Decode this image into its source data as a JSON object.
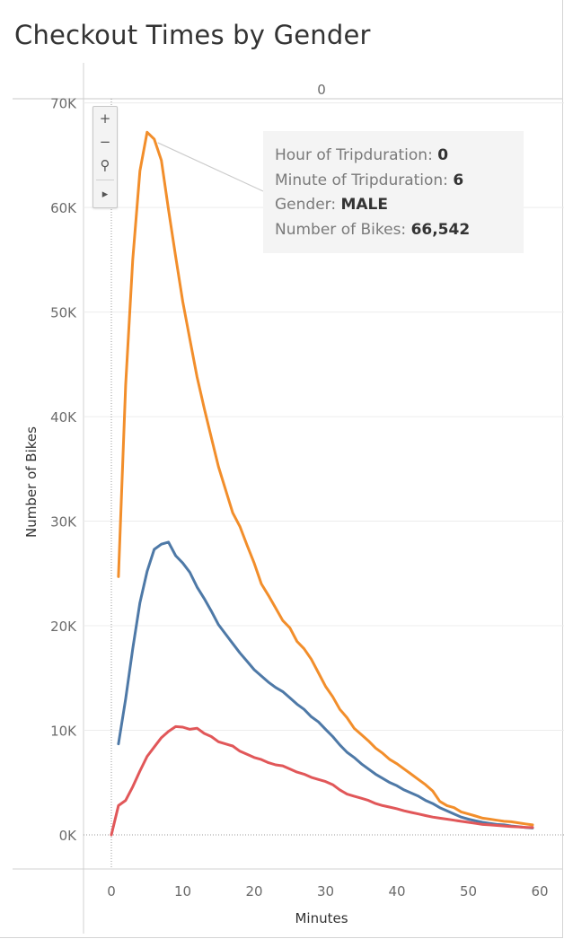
{
  "title": "Checkout Times by Gender",
  "column_header": "0",
  "zoom_tools": [
    {
      "name": "zoom-in",
      "glyph": "+"
    },
    {
      "name": "zoom-out",
      "glyph": "−"
    },
    {
      "name": "pin",
      "glyph": "⚲"
    },
    {
      "name": "expand",
      "glyph": "▸"
    }
  ],
  "tooltip": {
    "rows": [
      {
        "label": "Hour of Tripduration:",
        "value": "0"
      },
      {
        "label": "Minute of Tripduration:",
        "value": "6"
      },
      {
        "label": "Gender:",
        "value": "MALE"
      },
      {
        "label": "Number of Bikes:",
        "value": "66,542"
      }
    ]
  },
  "chart_data": {
    "type": "line",
    "title": "Checkout Times by Gender",
    "xlabel": "Minutes",
    "ylabel": "Number of Bikes",
    "xlim": [
      -4,
      61
    ],
    "ylim": [
      -3000,
      70000
    ],
    "x_ticks": [
      0,
      10,
      20,
      30,
      40,
      50,
      60
    ],
    "x_tick_labels": [
      "0",
      "10",
      "20",
      "30",
      "40",
      "50",
      "60"
    ],
    "y_ticks": [
      0,
      10000,
      20000,
      30000,
      40000,
      50000,
      60000,
      70000
    ],
    "y_tick_labels": [
      "0K",
      "10K",
      "20K",
      "30K",
      "40K",
      "50K",
      "60K",
      "70K"
    ],
    "grid": true,
    "colors": {
      "male": "#f28e2b",
      "female": "#4e79a7",
      "unknown": "#e15759",
      "grid": "#ececec",
      "zero_line": "#999999"
    },
    "series": [
      {
        "key": "male",
        "x": [
          1,
          2,
          3,
          4,
          5,
          6,
          7,
          8,
          9,
          10,
          11,
          12,
          13,
          14,
          15,
          16,
          17,
          18,
          19,
          20,
          21,
          22,
          23,
          24,
          25,
          26,
          27,
          28,
          29,
          30,
          31,
          32,
          33,
          34,
          35,
          36,
          37,
          38,
          39,
          40,
          41,
          42,
          43,
          44,
          45,
          46,
          47,
          48,
          49,
          50,
          51,
          52,
          53,
          54,
          55,
          56,
          57,
          58,
          59
        ],
        "values": [
          24700,
          43000,
          55000,
          63500,
          67200,
          66542,
          64500,
          59800,
          55300,
          51000,
          47400,
          43800,
          40800,
          38000,
          35200,
          33000,
          30800,
          29500,
          27700,
          26000,
          24000,
          22900,
          21700,
          20500,
          19800,
          18500,
          17800,
          16800,
          15500,
          14200,
          13200,
          12000,
          11200,
          10200,
          9600,
          9000,
          8300,
          7800,
          7200,
          6800,
          6300,
          5800,
          5300,
          4800,
          4200,
          3200,
          2800,
          2600,
          2200,
          2000,
          1800,
          1600,
          1500,
          1400,
          1300,
          1250,
          1150,
          1050,
          950
        ]
      },
      {
        "key": "female",
        "x": [
          1,
          2,
          3,
          4,
          5,
          6,
          7,
          8,
          9,
          10,
          11,
          12,
          13,
          14,
          15,
          16,
          17,
          18,
          19,
          20,
          21,
          22,
          23,
          24,
          25,
          26,
          27,
          28,
          29,
          30,
          31,
          32,
          33,
          34,
          35,
          36,
          37,
          38,
          39,
          40,
          41,
          42,
          43,
          44,
          45,
          46,
          47,
          48,
          49,
          50,
          51,
          52,
          53,
          54,
          55,
          56,
          57,
          58,
          59
        ],
        "values": [
          8700,
          13000,
          17800,
          22200,
          25200,
          27300,
          27800,
          28000,
          26700,
          26000,
          25100,
          23700,
          22600,
          21400,
          20100,
          19200,
          18300,
          17400,
          16600,
          15800,
          15200,
          14600,
          14100,
          13700,
          13100,
          12500,
          12000,
          11300,
          10800,
          10100,
          9400,
          8600,
          7900,
          7400,
          6800,
          6300,
          5800,
          5400,
          5000,
          4700,
          4300,
          4000,
          3700,
          3300,
          3000,
          2600,
          2300,
          2000,
          1700,
          1500,
          1350,
          1200,
          1100,
          1000,
          950,
          850,
          780,
          700,
          650
        ]
      },
      {
        "key": "unknown",
        "x": [
          0,
          1,
          2,
          3,
          4,
          5,
          6,
          7,
          8,
          9,
          10,
          11,
          12,
          13,
          14,
          15,
          16,
          17,
          18,
          19,
          20,
          21,
          22,
          23,
          24,
          25,
          26,
          27,
          28,
          29,
          30,
          31,
          32,
          33,
          34,
          35,
          36,
          37,
          38,
          39,
          40,
          41,
          42,
          43,
          44,
          45,
          46,
          47,
          48,
          49,
          50,
          51,
          52,
          53,
          54,
          55,
          56,
          57,
          58,
          59
        ],
        "values": [
          0,
          2800,
          3300,
          4600,
          6100,
          7500,
          8400,
          9300,
          9900,
          10350,
          10300,
          10100,
          10200,
          9700,
          9400,
          8900,
          8700,
          8500,
          8000,
          7700,
          7400,
          7200,
          6900,
          6700,
          6600,
          6300,
          6000,
          5800,
          5500,
          5300,
          5100,
          4800,
          4300,
          3900,
          3700,
          3500,
          3300,
          3000,
          2800,
          2650,
          2500,
          2300,
          2150,
          2000,
          1850,
          1700,
          1600,
          1500,
          1400,
          1300,
          1200,
          1100,
          1000,
          950,
          900,
          850,
          800,
          760,
          720,
          700
        ]
      }
    ],
    "highlight": {
      "series": "male",
      "x": 6,
      "y": 66542
    }
  }
}
